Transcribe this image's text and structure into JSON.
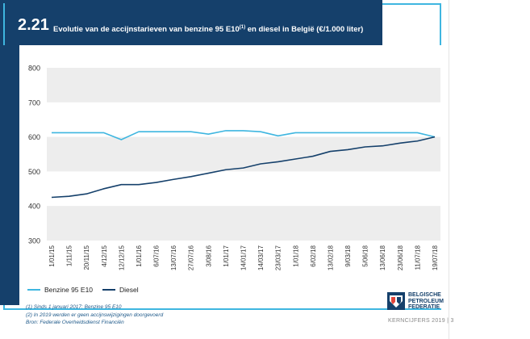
{
  "header": {
    "figure_number": "2.21",
    "title_main": "Evolutie van de accijnstarieven van benzine 95 E10",
    "title_sup": "(1)",
    "title_rest": " en diesel in België (€/1.000 liter)"
  },
  "legend": {
    "benzine_label": "Benzine 95 E10",
    "diesel_label": "Diesel"
  },
  "footnotes": {
    "note1": "(1) Sinds 1 januari 2017: Benzine 95 E10",
    "note2": "(2) In 2019 werden er geen accijnswijzigingen doorgevoerd",
    "source": "Bron: Federale Overheidsdienst Financiën"
  },
  "logo": {
    "line1": "BELGISCHE",
    "line2": "PETROLEUM",
    "line3": "FEDERATIE"
  },
  "footer": {
    "label": "KERNCIJFERS 2019 | 3"
  },
  "colors": {
    "header_bg": "#15406b",
    "benzine": "#3fb6e0",
    "diesel": "#15406b",
    "band": "#ededed"
  },
  "chart_data": {
    "type": "line",
    "categories": [
      "1/01/15",
      "1/11/15",
      "20/11/15",
      "4/12/15",
      "12/12/15",
      "1/01/16",
      "6/07/16",
      "13/07/16",
      "27/07/16",
      "3/08/16",
      "1/01/17",
      "14/01/17",
      "14/03/17",
      "23/03/17",
      "1/01/18",
      "6/02/18",
      "13/02/18",
      "9/03/18",
      "5/06/18",
      "13/06/18",
      "23/06/18",
      "11/07/18",
      "19/07/18"
    ],
    "series": [
      {
        "name": "Benzine 95 E10",
        "values": [
          612,
          612,
          612,
          612,
          592,
          615,
          615,
          615,
          615,
          608,
          618,
          618,
          615,
          603,
          612,
          612,
          612,
          612,
          612,
          612,
          612,
          612,
          600
        ]
      },
      {
        "name": "Diesel",
        "values": [
          425,
          428,
          435,
          450,
          462,
          462,
          468,
          477,
          485,
          495,
          505,
          510,
          522,
          528,
          536,
          544,
          558,
          563,
          571,
          574,
          582,
          588,
          600
        ]
      }
    ],
    "ylim": [
      300,
      800
    ],
    "yticks": [
      300,
      400,
      500,
      600,
      700,
      800
    ],
    "grid": "alternating horizontal bands",
    "legend_position": "bottom-left"
  }
}
